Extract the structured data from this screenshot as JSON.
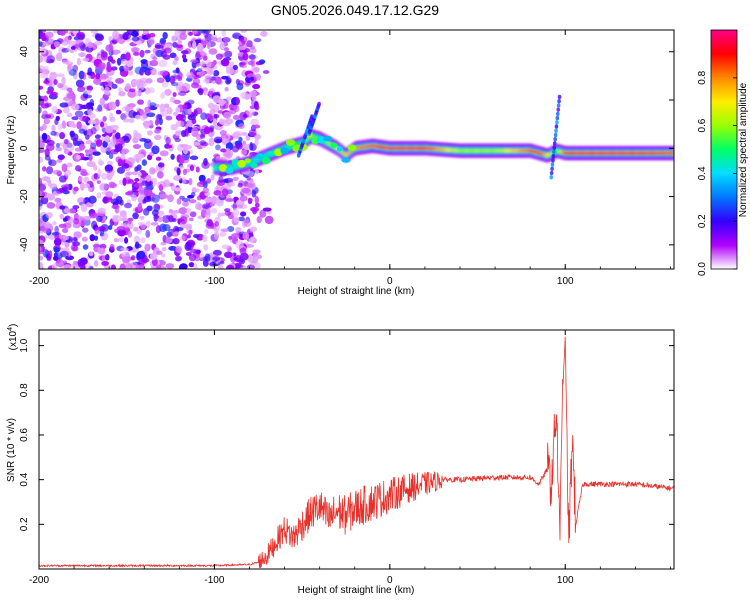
{
  "title": "GN05.2026.049.17.12.G29",
  "chart_data": [
    {
      "type": "heatmap",
      "xlabel": "Height of straight line (km)",
      "ylabel": "Frequency (Hz)",
      "xlim": [
        -200,
        162
      ],
      "ylim": [
        -50,
        49
      ],
      "xticks": [
        "-200",
        "-100",
        "0",
        "100"
      ],
      "yticks": [
        "-40",
        "-20",
        "0",
        "20",
        "40"
      ],
      "colorbar": {
        "label": "Normalized spectral amplitude",
        "range": [
          0,
          1
        ],
        "ticks": [
          "0.0",
          "0.2",
          "0.4",
          "0.6",
          "0.8"
        ],
        "colors": [
          "#ffffff",
          "#b000ff",
          "#3300ff",
          "#0077ff",
          "#00ddff",
          "#00ff66",
          "#99ff00",
          "#ffee00",
          "#ff8800",
          "#ff0000",
          "#ff0088"
        ]
      },
      "noise_region_km": [
        -200,
        -75
      ],
      "ridge": {
        "x": [
          -100,
          -90,
          -80,
          -70,
          -60,
          -50,
          -45,
          -40,
          -35,
          -30,
          -25,
          -20,
          -10,
          0,
          10,
          20,
          40,
          60,
          80,
          85,
          90,
          95,
          100,
          120,
          140,
          162
        ],
        "freq": [
          -8,
          -8,
          -6,
          -3,
          0,
          2,
          5,
          4,
          2,
          0,
          -3,
          0,
          1,
          0,
          0,
          0,
          -1,
          -1,
          -1,
          -2,
          -3,
          -1,
          -2,
          -2,
          -2,
          -2
        ],
        "amplitude": [
          0.45,
          0.45,
          0.4,
          0.4,
          0.45,
          0.5,
          0.6,
          0.5,
          0.6,
          0.7,
          0.75,
          0.8,
          0.85,
          0.95,
          0.95,
          0.9,
          0.6,
          0.6,
          0.85,
          0.9,
          0.7,
          0.5,
          0.9,
          0.92,
          0.9,
          0.85
        ]
      }
    },
    {
      "type": "line",
      "xlabel": "Height of straight line (km)",
      "ylabel": "SNR (10 * v/v)",
      "yscale_label": "(x10",
      "yscale_exp": "4",
      "yscale_close": ")",
      "xlim": [
        -200,
        162
      ],
      "ylim": [
        0,
        1.07
      ],
      "xticks": [
        "-200",
        "-100",
        "0",
        "100"
      ],
      "yticks": [
        "0.2",
        "0.4",
        "0.6",
        "0.8",
        "1.0"
      ],
      "series": [
        {
          "name": "SNR",
          "color": "#e8302a",
          "x": [
            -200,
            -150,
            -100,
            -80,
            -75,
            -70,
            -65,
            -60,
            -55,
            -50,
            -45,
            -40,
            -35,
            -30,
            -25,
            -20,
            -10,
            0,
            10,
            20,
            30,
            40,
            60,
            80,
            85,
            90,
            92,
            95,
            97,
            98,
            100,
            102,
            104,
            106,
            110,
            120,
            140,
            162
          ],
          "values": [
            0.015,
            0.015,
            0.015,
            0.02,
            0.03,
            0.06,
            0.12,
            0.18,
            0.14,
            0.2,
            0.25,
            0.28,
            0.22,
            0.26,
            0.24,
            0.27,
            0.3,
            0.33,
            0.36,
            0.38,
            0.4,
            0.4,
            0.41,
            0.41,
            0.38,
            0.45,
            0.38,
            0.72,
            0.08,
            0.7,
            1.04,
            0.1,
            0.6,
            0.2,
            0.38,
            0.38,
            0.38,
            0.36
          ]
        }
      ]
    }
  ]
}
